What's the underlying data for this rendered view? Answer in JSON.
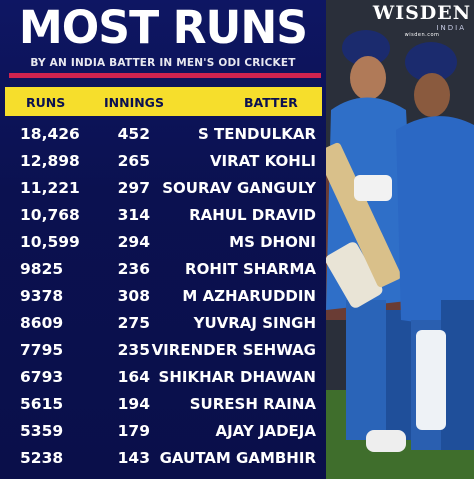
{
  "title": "MOST RUNS",
  "subtitle": "BY AN INDIA BATTER IN MEN'S ODI CRICKET",
  "logo": {
    "main": "WISDEN",
    "sub": "INDIA",
    "url": "wisden.com"
  },
  "colors": {
    "background": "#0b1150",
    "header": "#f6de2c",
    "accent_bar": "#d0234f"
  },
  "columns": [
    "RUNS",
    "INNINGS",
    "BATTER"
  ],
  "rows": [
    {
      "runs": "18,426",
      "innings": "452",
      "batter": "S TENDULKAR"
    },
    {
      "runs": "12,898",
      "innings": "265",
      "batter": "VIRAT KOHLI"
    },
    {
      "runs": "11,221",
      "innings": "297",
      "batter": "SOURAV GANGULY"
    },
    {
      "runs": "10,768",
      "innings": "314",
      "batter": "RAHUL DRAVID"
    },
    {
      "runs": "10,599",
      "innings": "294",
      "batter": "MS DHONI"
    },
    {
      "runs": "9825",
      "innings": "236",
      "batter": "ROHIT SHARMA"
    },
    {
      "runs": "9378",
      "innings": "308",
      "batter": "M AZHARUDDIN"
    },
    {
      "runs": "8609",
      "innings": "275",
      "batter": "YUVRAJ SINGH"
    },
    {
      "runs": "7795",
      "innings": "235",
      "batter": "VIRENDER SEHWAG"
    },
    {
      "runs": "6793",
      "innings": "164",
      "batter": "SHIKHAR DHAWAN"
    },
    {
      "runs": "5615",
      "innings": "194",
      "batter": "SURESH RAINA"
    },
    {
      "runs": "5359",
      "innings": "179",
      "batter": "AJAY JADEJA"
    },
    {
      "runs": "5238",
      "innings": "143",
      "batter": "GAUTAM GAMBHIR"
    }
  ]
}
